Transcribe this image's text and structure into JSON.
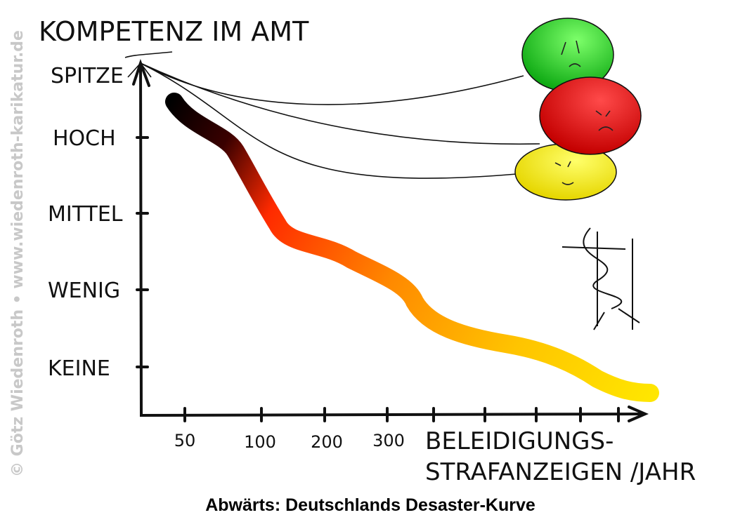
{
  "title": "KOMPETENZ IM AMT",
  "y_labels": [
    "SPITZE",
    "HOCH",
    "MITTEL",
    "WENIG",
    "KEINE"
  ],
  "x_labels": [
    50,
    100,
    200,
    300
  ],
  "x_axis_label": [
    "BELEIDIGUNGS-",
    "STRAFANZEIGEN /JAHR"
  ],
  "caption": "Abwärts: Deutschlands Desaster-Kurve",
  "watermark": "© Götz Wiedenroth • www.wiedenroth-karikatur.de"
}
